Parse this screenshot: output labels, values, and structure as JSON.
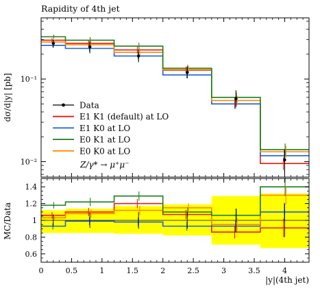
{
  "title": "Rapidity of 4th jet",
  "chart_data": [
    {
      "type": "line",
      "panel": "main",
      "title": "Rapidity of 4th jet",
      "ylabel": "dσ/d|y| [pb]",
      "yscale": "log",
      "ylim": [
        0.0065,
        0.55
      ],
      "yticks": [
        {
          "value": 0.1,
          "label": "10⁻¹"
        },
        {
          "value": 0.01,
          "label": "10⁻²"
        }
      ],
      "x_edges": [
        0,
        0.4,
        1.2,
        2.0,
        2.8,
        3.6,
        4.4
      ],
      "xlim": [
        0,
        4.4
      ],
      "process_label": "Z/γ* → μ⁺μ⁻",
      "legend_position": "lower-left",
      "data": {
        "name": "Data",
        "x": [
          0.2,
          0.8,
          1.6,
          2.4,
          3.2,
          4.0
        ],
        "y": [
          0.27,
          0.245,
          0.19,
          0.12,
          0.058,
          0.0105
        ],
        "err_down": [
          0.03,
          0.04,
          0.03,
          0.018,
          0.012,
          0.0032
        ],
        "err_up": [
          0.03,
          0.04,
          0.035,
          0.022,
          0.015,
          0.0035
        ]
      },
      "series": [
        {
          "name": "E1 K1 (default) at LO",
          "color": "#e8190f",
          "values": [
            0.295,
            0.27,
            0.225,
            0.128,
            0.05,
            0.0095
          ]
        },
        {
          "name": "E1 K0 at LO",
          "color": "#1a62e0",
          "values": [
            0.255,
            0.235,
            0.19,
            0.112,
            0.05,
            0.0118
          ]
        },
        {
          "name": "E0 K1 at LO",
          "color": "#1a7f1a",
          "values": [
            0.325,
            0.295,
            0.25,
            0.135,
            0.06,
            0.014
          ]
        },
        {
          "name": "E0 K0 at LO",
          "color": "#ff8800",
          "values": [
            0.28,
            0.26,
            0.21,
            0.13,
            0.055,
            0.0132
          ]
        }
      ]
    },
    {
      "type": "line",
      "panel": "ratio",
      "ylabel": "MC/Data",
      "xlabel": "|y|(4th jet)",
      "ylim": [
        0.5,
        1.5
      ],
      "yticks": [
        0.6,
        0.8,
        1,
        1.2,
        1.4
      ],
      "xticks": [
        0,
        0.5,
        1,
        1.5,
        2,
        2.5,
        3,
        3.5,
        4
      ],
      "x_edges": [
        0,
        0.4,
        1.2,
        2.0,
        2.8,
        3.6,
        4.4
      ],
      "data_band": {
        "color": "#ffff00",
        "lower": [
          0.85,
          0.85,
          0.84,
          0.82,
          0.71,
          0.67
        ],
        "upper": [
          1.12,
          1.14,
          1.17,
          1.19,
          1.29,
          1.32
        ]
      },
      "data_errors": {
        "x": [
          0.2,
          0.8,
          1.6,
          2.4,
          3.2,
          4.0
        ],
        "err_down": [
          0.07,
          0.09,
          0.1,
          0.1,
          0.14,
          0.2
        ],
        "err_up": [
          0.07,
          0.09,
          0.1,
          0.1,
          0.14,
          0.2
        ]
      },
      "series": [
        {
          "name": "E1 K1 (default) at LO",
          "color": "#e8190f",
          "values": [
            1.06,
            1.1,
            1.2,
            1.07,
            0.86,
            0.91
          ]
        },
        {
          "name": "E1 K0 at LO",
          "color": "#1a62e0",
          "values": [
            0.93,
            0.99,
            0.98,
            0.93,
            0.93,
            1.1
          ]
        },
        {
          "name": "E0 K1 at LO",
          "color": "#1a7f1a",
          "values": [
            1.18,
            1.22,
            1.29,
            1.1,
            1.06,
            1.4
          ]
        },
        {
          "name": "E0 K0 at LO",
          "color": "#ff8800",
          "values": [
            1.03,
            1.08,
            1.12,
            1.15,
            0.95,
            1.3
          ]
        }
      ]
    }
  ]
}
